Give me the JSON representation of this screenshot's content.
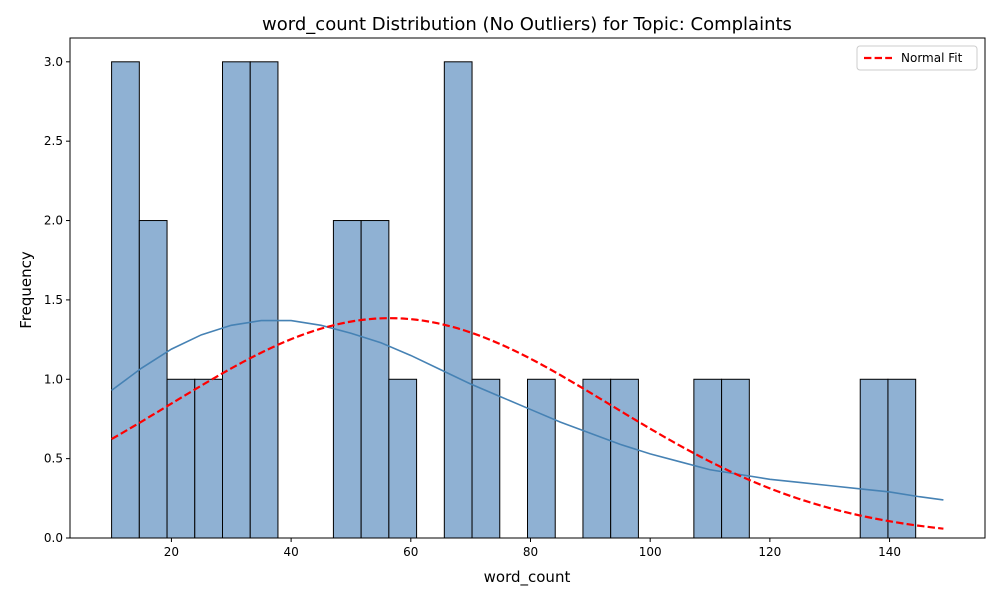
{
  "chart_data": {
    "type": "bar",
    "title": "word_count Distribution (No Outliers) for Topic: Complaints",
    "xlabel": "word_count",
    "ylabel": "Frequency",
    "xlim": [
      3.05,
      155.95
    ],
    "ylim": [
      0,
      3.15
    ],
    "x_ticks": [
      20,
      40,
      60,
      80,
      100,
      120,
      140
    ],
    "y_ticks": [
      0.0,
      0.5,
      1.0,
      1.5,
      2.0,
      2.5,
      3.0
    ],
    "x_tick_labels": [
      "20",
      "40",
      "60",
      "80",
      "100",
      "120",
      "140"
    ],
    "y_tick_labels": [
      "0.0",
      "0.5",
      "1.0",
      "1.5",
      "2.0",
      "2.5",
      "3.0"
    ],
    "grid": false,
    "legend_position": "top-right",
    "bins": {
      "start": 10,
      "end": 149,
      "count": 30,
      "counts": [
        3,
        2,
        1,
        1,
        3,
        3,
        0,
        0,
        2,
        2,
        1,
        0,
        3,
        1,
        0,
        1,
        0,
        1,
        1,
        0,
        0,
        1,
        1,
        0,
        0,
        0,
        0,
        1,
        1,
        0
      ]
    },
    "series": [
      {
        "kind": "histogram",
        "fill": "#8fb1d3",
        "edge": "#000000"
      },
      {
        "kind": "kde",
        "color": "#4682b4",
        "x": [
          10,
          15,
          20,
          25,
          30,
          35,
          40,
          45,
          50,
          55,
          60,
          65,
          70,
          75,
          80,
          85,
          90,
          95,
          100,
          105,
          110,
          115,
          120,
          125,
          130,
          135,
          140,
          145,
          149
        ],
        "y": [
          0.93,
          1.07,
          1.19,
          1.28,
          1.34,
          1.37,
          1.37,
          1.34,
          1.29,
          1.23,
          1.15,
          1.06,
          0.97,
          0.89,
          0.81,
          0.73,
          0.66,
          0.59,
          0.53,
          0.48,
          0.43,
          0.4,
          0.37,
          0.35,
          0.33,
          0.31,
          0.29,
          0.26,
          0.24
        ]
      },
      {
        "name": "Normal Fit",
        "kind": "normal",
        "color": "#ff0000",
        "style": "dashed",
        "mean": 56.5,
        "sd": 36.8,
        "peak": 1.385,
        "x_range": [
          10,
          149
        ]
      }
    ]
  }
}
